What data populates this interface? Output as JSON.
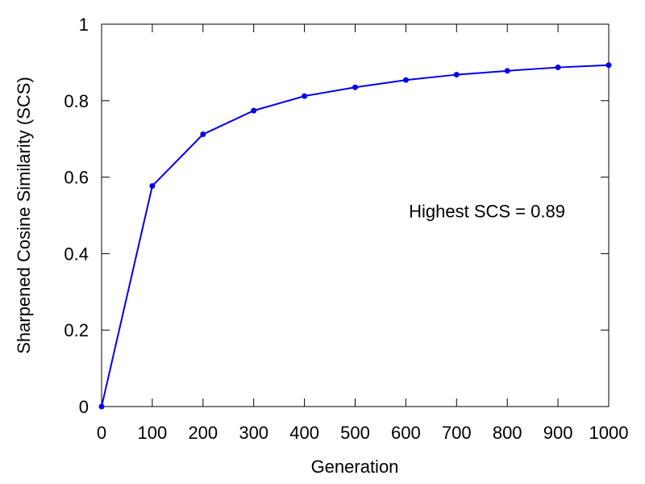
{
  "chart_data": {
    "type": "line",
    "xlabel": "Generation",
    "ylabel": "Sharpened Cosine Similarity (SCS)",
    "xlim": [
      0,
      1000
    ],
    "ylim": [
      0,
      1
    ],
    "x_ticks": [
      0,
      100,
      200,
      300,
      400,
      500,
      600,
      700,
      800,
      900,
      1000
    ],
    "y_ticks": [
      0,
      0.2,
      0.4,
      0.6,
      0.8,
      1
    ],
    "x_tick_labels": [
      "0",
      "100",
      "200",
      "300",
      "400",
      "500",
      "600",
      "700",
      "800",
      "900",
      "1000"
    ],
    "y_tick_labels": [
      "0",
      "0.2",
      "0.4",
      "0.6",
      "0.8",
      "1"
    ],
    "grid": false,
    "series": [
      {
        "color": "#0000ee",
        "x": [
          0,
          100,
          200,
          300,
          400,
          500,
          600,
          700,
          800,
          900,
          1000
        ],
        "y": [
          0.0,
          0.577,
          0.712,
          0.774,
          0.812,
          0.835,
          0.854,
          0.868,
          0.878,
          0.887,
          0.893
        ]
      }
    ],
    "annotations": [
      {
        "text": "Highest SCS = 0.89",
        "x": 760,
        "y": 0.495
      }
    ]
  }
}
